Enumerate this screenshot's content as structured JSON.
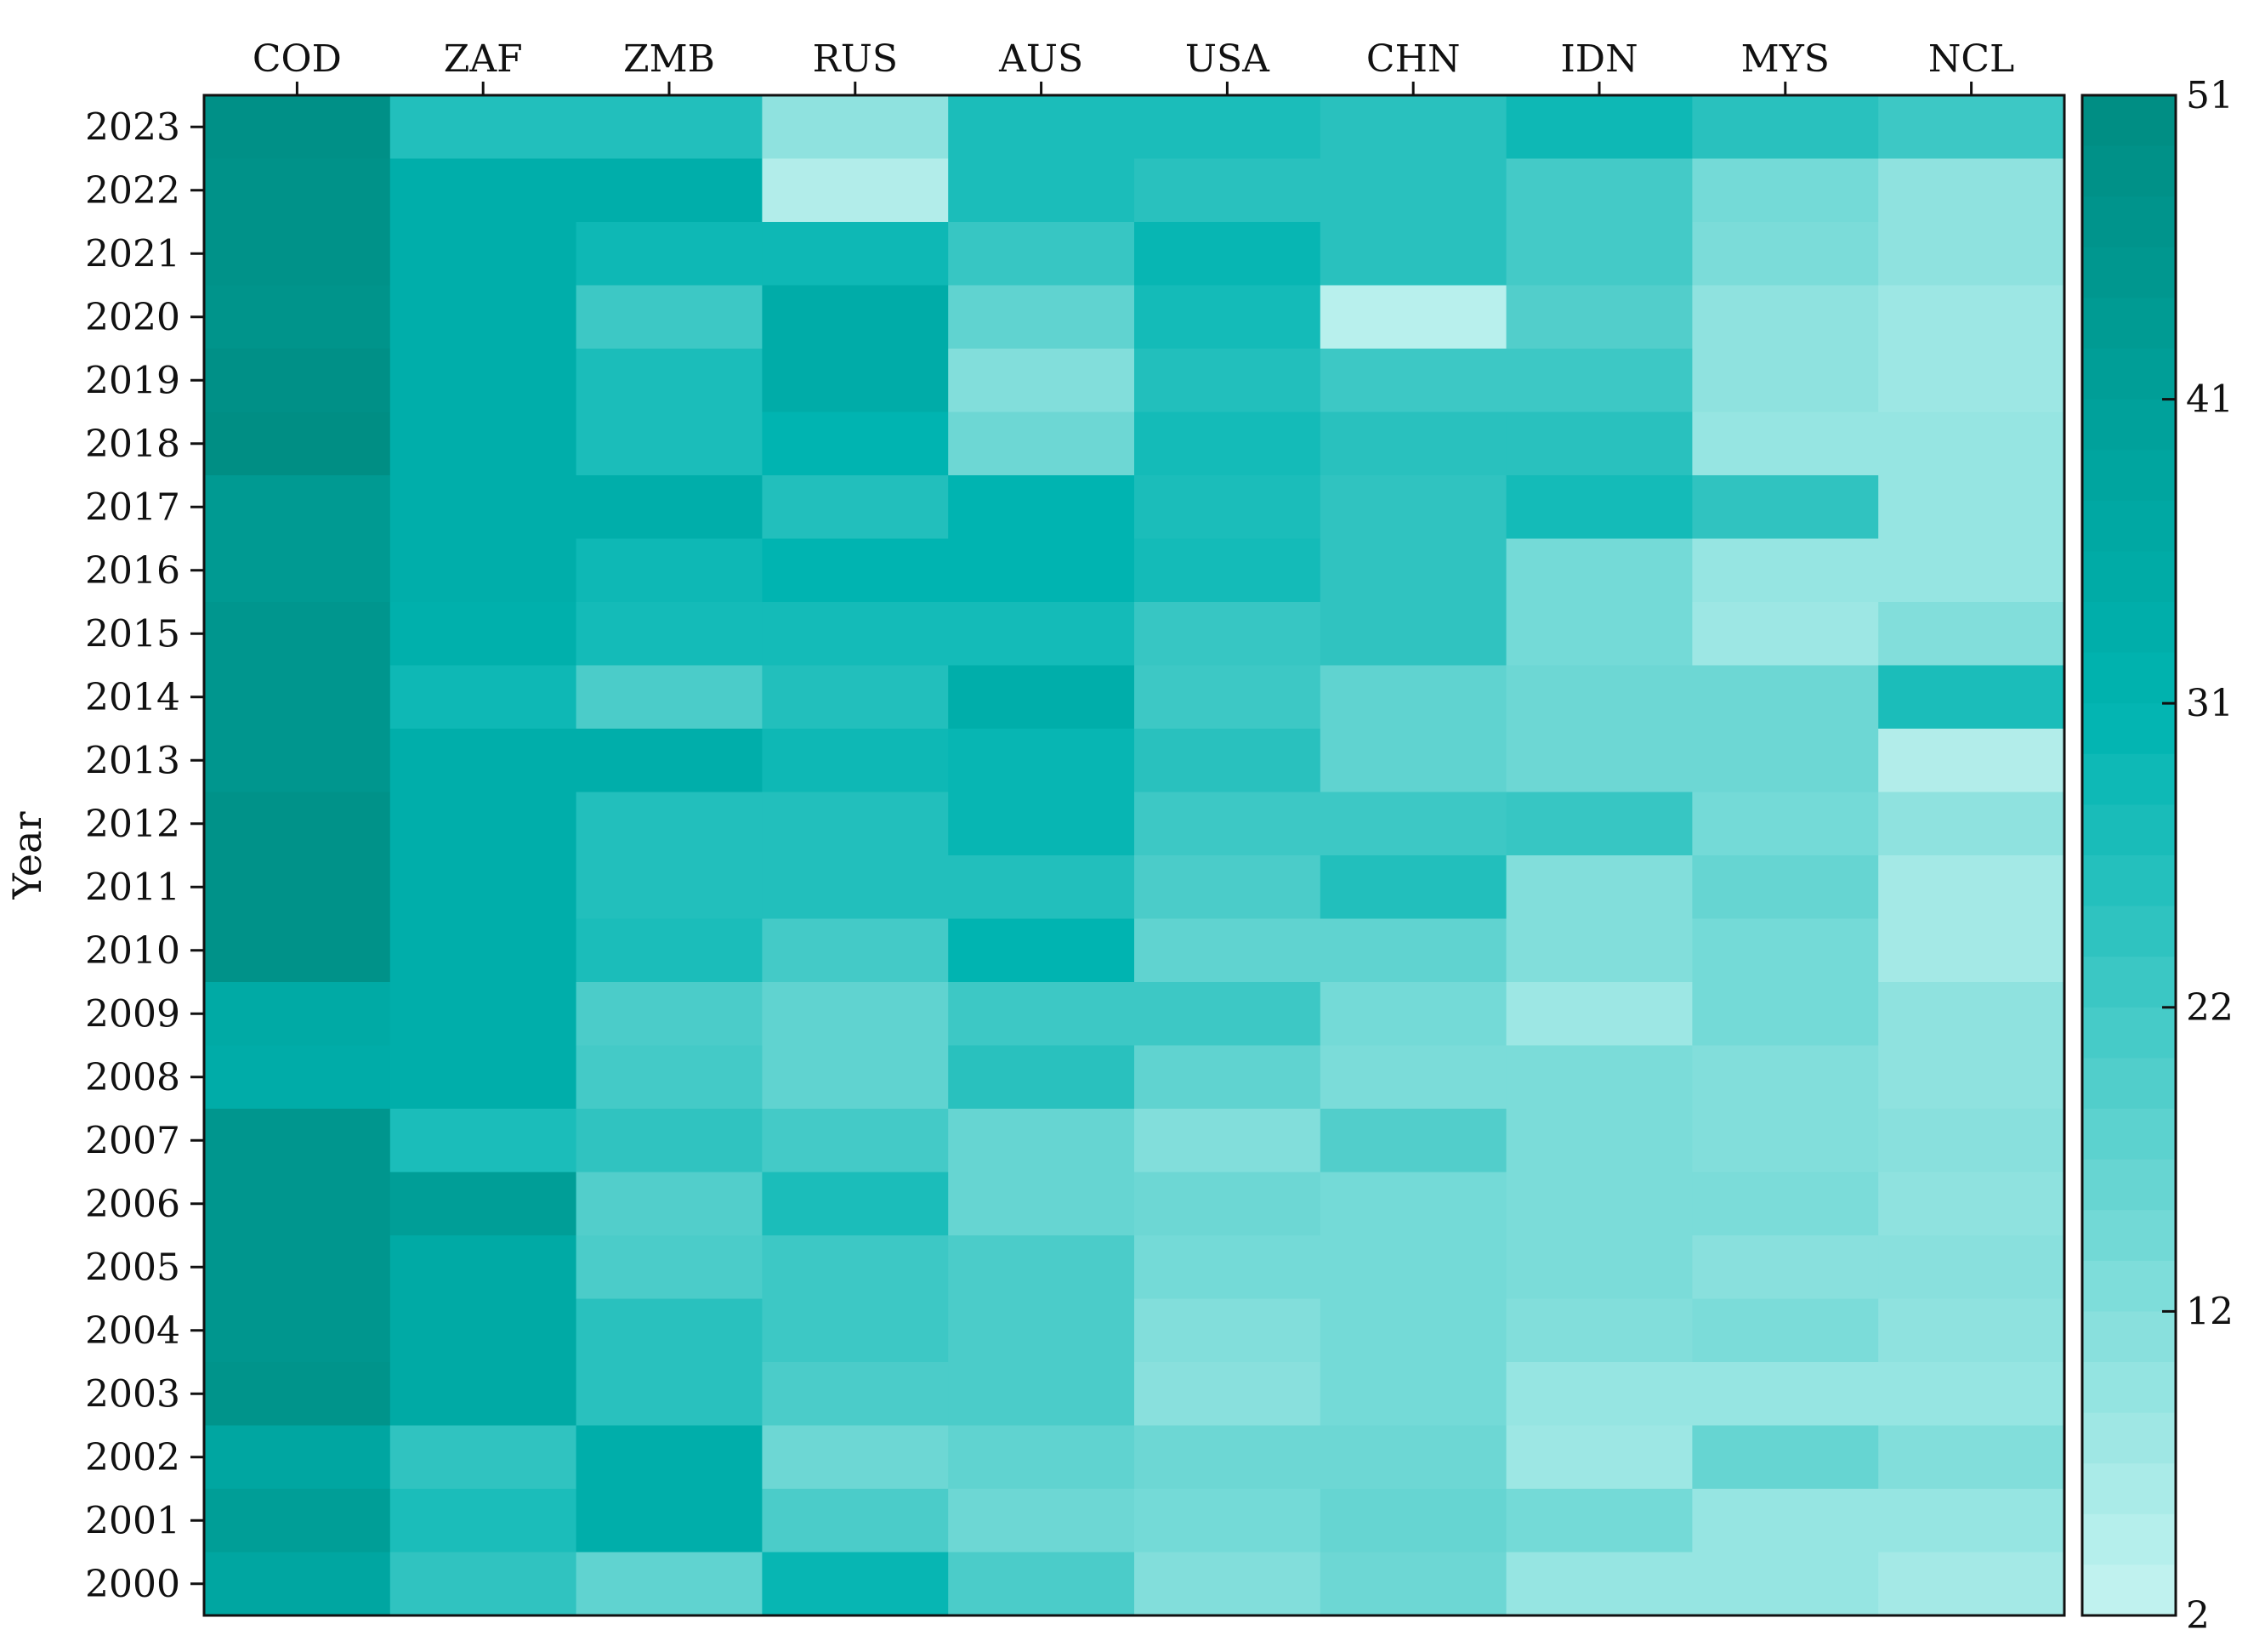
{
  "chart_data": {
    "type": "heatmap",
    "title": "",
    "xlabel": "",
    "ylabel": "Year",
    "x_categories": [
      "COD",
      "ZAF",
      "ZMB",
      "RUS",
      "AUS",
      "USA",
      "CHN",
      "IDN",
      "MYS",
      "NCL"
    ],
    "y_categories": [
      "2023",
      "2022",
      "2021",
      "2020",
      "2019",
      "2018",
      "2017",
      "2016",
      "2015",
      "2014",
      "2013",
      "2012",
      "2011",
      "2010",
      "2009",
      "2008",
      "2007",
      "2006",
      "2005",
      "2004",
      "2003",
      "2002",
      "2001",
      "2000"
    ],
    "values": [
      [
        49,
        26,
        26,
        10,
        27,
        27,
        25,
        29,
        25,
        22
      ],
      [
        48,
        34,
        34,
        5,
        27,
        25,
        25,
        21,
        14,
        10
      ],
      [
        48,
        34,
        29,
        29,
        23,
        30,
        25,
        21,
        13,
        10
      ],
      [
        47,
        34,
        22,
        35,
        17,
        28,
        4,
        19,
        10,
        8
      ],
      [
        49,
        34,
        27,
        35,
        12,
        26,
        22,
        22,
        10,
        8
      ],
      [
        50,
        34,
        27,
        31,
        15,
        28,
        25,
        25,
        9,
        9
      ],
      [
        44,
        34,
        34,
        26,
        31,
        27,
        24,
        28,
        24,
        9
      ],
      [
        44,
        34,
        29,
        31,
        31,
        28,
        24,
        14,
        9,
        9
      ],
      [
        46,
        33,
        28,
        28,
        28,
        23,
        24,
        14,
        8,
        12
      ],
      [
        46,
        29,
        20,
        26,
        34,
        22,
        17,
        15,
        15,
        27
      ],
      [
        46,
        34,
        34,
        29,
        30,
        25,
        17,
        15,
        15,
        5
      ],
      [
        48,
        34,
        26,
        26,
        30,
        22,
        22,
        23,
        14,
        10
      ],
      [
        48,
        34,
        26,
        26,
        26,
        20,
        26,
        12,
        16,
        7
      ],
      [
        48,
        34,
        27,
        21,
        31,
        17,
        17,
        12,
        14,
        7
      ],
      [
        36,
        34,
        20,
        17,
        22,
        22,
        14,
        8,
        14,
        10
      ],
      [
        35,
        34,
        21,
        17,
        25,
        17,
        13,
        13,
        12,
        10
      ],
      [
        46,
        27,
        24,
        21,
        16,
        12,
        19,
        13,
        12,
        11
      ],
      [
        46,
        42,
        19,
        27,
        16,
        15,
        14,
        13,
        13,
        10
      ],
      [
        46,
        36,
        20,
        22,
        20,
        14,
        14,
        13,
        11,
        11
      ],
      [
        46,
        36,
        25,
        22,
        20,
        12,
        14,
        12,
        13,
        10
      ],
      [
        47,
        36,
        25,
        20,
        20,
        11,
        14,
        9,
        9,
        9
      ],
      [
        38,
        24,
        34,
        15,
        17,
        15,
        15,
        8,
        16,
        12
      ],
      [
        42,
        27,
        34,
        20,
        15,
        14,
        16,
        14,
        9,
        9
      ],
      [
        38,
        24,
        17,
        30,
        20,
        12,
        15,
        9,
        9,
        7
      ]
    ],
    "colorbar": {
      "min": 2,
      "max": 51,
      "ticks": [
        "51",
        "41",
        "31",
        "22",
        "12",
        "2"
      ],
      "colors": {
        "low": "#c6f4f1",
        "mid": "#00b4b1",
        "high": "#008c82"
      }
    },
    "grid": false
  }
}
